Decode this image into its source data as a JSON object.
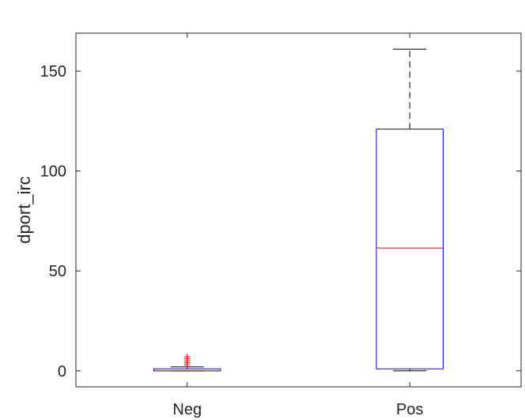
{
  "chart_data": {
    "type": "box",
    "title": "",
    "xlabel": "",
    "ylabel": "dport_irc",
    "ylim": [
      -8,
      169
    ],
    "yticks": [
      0,
      50,
      100,
      150
    ],
    "grid": false,
    "legend": "none",
    "categories": [
      "Neg",
      "Pos"
    ],
    "boxes": [
      {
        "category": "Neg",
        "whisker_low": 0,
        "q1": 0,
        "median": 0,
        "q3": 1,
        "whisker_high": 2,
        "outliers": [
          3,
          4,
          5,
          6,
          7
        ]
      },
      {
        "category": "Pos",
        "whisker_low": 0,
        "q1": 1,
        "median": 61.5,
        "q3": 121,
        "whisker_high": 161,
        "outliers": []
      }
    ],
    "colors": {
      "box": "#0000ff",
      "median": "#ff0000",
      "whisker": "#000000",
      "outlier": "#ff0000",
      "axis": "#262626"
    }
  }
}
